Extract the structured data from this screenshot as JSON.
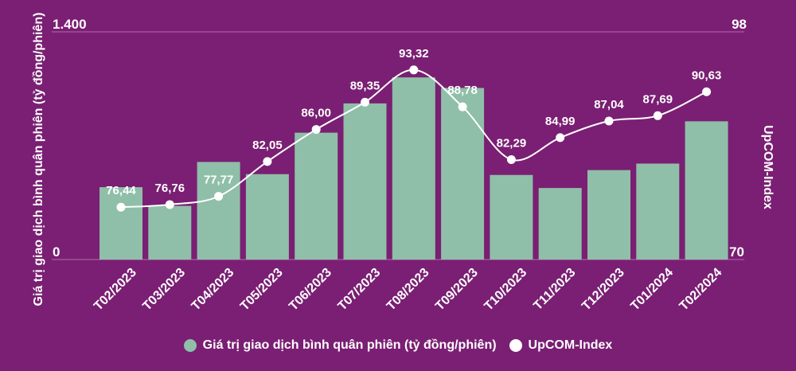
{
  "chart_data": {
    "type": "bar-line-combo",
    "title": "",
    "categories": [
      "T02/2023",
      "T03/2023",
      "T04/2023",
      "T05/2023",
      "T06/2023",
      "T07/2023",
      "T08/2023",
      "T09/2023",
      "T10/2023",
      "T11/2023",
      "T12/2023",
      "T01/2024",
      "T02/2024"
    ],
    "series": [
      {
        "name": "Giá trị giao dịch bình quân phiên (tỷ đồng/phiên)",
        "type": "bar",
        "axis": "left",
        "color": "#8fbfa8",
        "values": [
          445,
          330,
          600,
          525,
          780,
          960,
          1120,
          1055,
          520,
          440,
          550,
          590,
          850
        ]
      },
      {
        "name": "UpCOM-Index",
        "type": "line",
        "axis": "right",
        "color": "#ffffff",
        "values": [
          76.44,
          76.76,
          77.77,
          82.05,
          86.0,
          89.35,
          93.32,
          88.78,
          82.29,
          84.99,
          87.04,
          87.69,
          90.63
        ],
        "labels": [
          "76,44",
          "76,76",
          "77,77",
          "82,05",
          "86,00",
          "89,35",
          "93,32",
          "88,78",
          "82,29",
          "84,99",
          "87,04",
          "87,69",
          "90,63"
        ]
      }
    ],
    "ylabel": "Giá trị giao dịch bình quân phiên (tỷ đồng/phiên)",
    "y2label": "UpCOM-Index",
    "ylim": [
      0,
      1400
    ],
    "y2lim": [
      70,
      98
    ],
    "ytick_labels": [
      "0",
      "1.400"
    ],
    "y2tick_labels": [
      "70",
      "98"
    ],
    "grid": true,
    "legend_position": "bottom"
  }
}
